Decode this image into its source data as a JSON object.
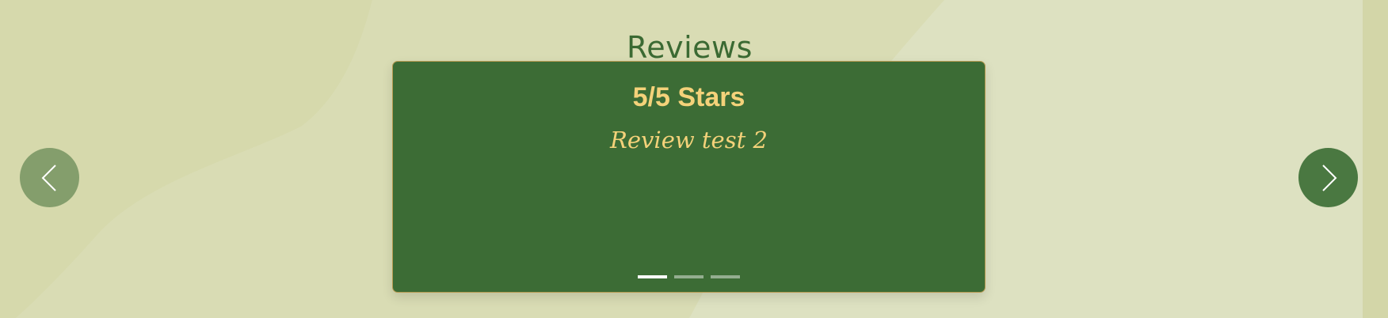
{
  "section": {
    "title": "Reviews"
  },
  "carousel": {
    "current_slide": 1,
    "total_slides": 3,
    "slide": {
      "rating": "5/5 Stars",
      "review": "Review test 2"
    },
    "indicators": [
      {
        "label": "Slide 1",
        "active": true
      },
      {
        "label": "Slide 2",
        "active": false
      },
      {
        "label": "Slide 3",
        "active": false
      }
    ],
    "prev_icon": "chevron-left-icon",
    "next_icon": "chevron-right-icon"
  },
  "colors": {
    "background": "#dde1c1",
    "card": "#3c6c35",
    "accent_text": "#f4d27a",
    "heading": "#3b6a33"
  }
}
